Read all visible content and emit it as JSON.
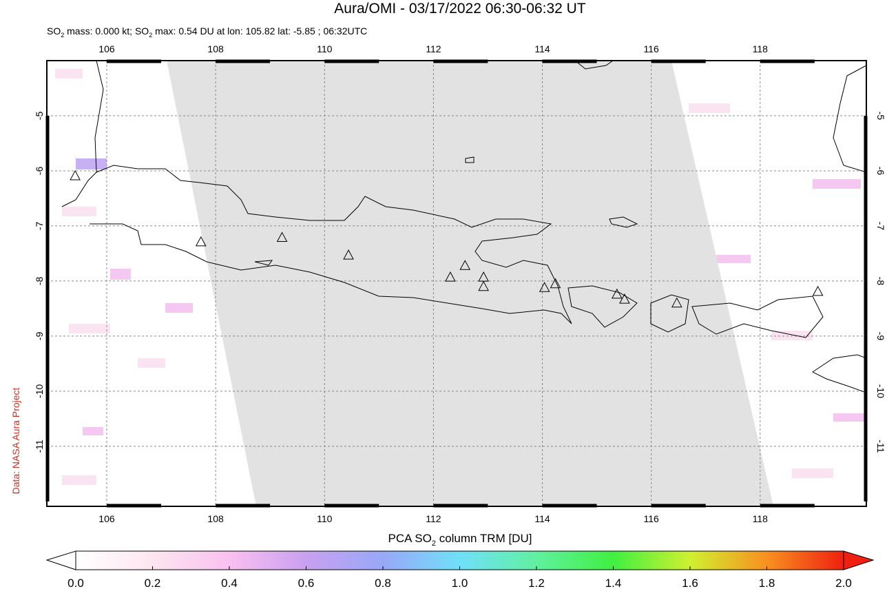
{
  "map": {
    "title": "Aura/OMI - 03/17/2022 06:30-06:32 UT",
    "subtitle": {
      "parts": [
        "SO",
        " mass: 0.000 kt; SO",
        " max: 0.54 DU at lon: 105.82 lat: -5.85 ; 06:32UTC"
      ],
      "subscript": "2"
    },
    "credit": "Data: NASA Aura Project",
    "xlim": [
      104.9,
      119.95
    ],
    "ylim": [
      -12.09,
      -4.0
    ],
    "xticks": [
      106,
      108,
      110,
      112,
      114,
      116,
      118
    ],
    "yticks": [
      -5,
      -6,
      -7,
      -8,
      -9,
      -10,
      -11
    ],
    "grid": true,
    "volcanoes": {
      "lon": [
        105.42,
        107.73,
        109.22,
        110.44,
        112.31,
        112.58,
        112.92,
        112.92,
        114.04,
        114.24,
        115.37,
        115.51,
        116.47,
        119.06
      ],
      "lat": [
        -6.1,
        -7.3,
        -7.22,
        -7.54,
        -7.94,
        -7.73,
        -7.94,
        -8.11,
        -8.13,
        -8.06,
        -8.25,
        -8.34,
        -8.41,
        -8.2
      ]
    },
    "colorbar": {
      "label": {
        "parts": [
          "PCA SO",
          " column TRM [DU]"
        ],
        "subscript": "2"
      },
      "clim": [
        0,
        2
      ],
      "ticks": [
        {
          "value": 0,
          "label": "0.0"
        },
        {
          "value": 0.2,
          "label": "0.2"
        },
        {
          "value": 0.4,
          "label": "0.4"
        },
        {
          "value": 0.6,
          "label": "0.6"
        },
        {
          "value": 0.8,
          "label": "0.8"
        },
        {
          "value": 1,
          "label": "1.0"
        },
        {
          "value": 1.2,
          "label": "1.2"
        },
        {
          "value": 1.4,
          "label": "1.4"
        },
        {
          "value": 1.6,
          "label": "1.6"
        },
        {
          "value": 1.8,
          "label": "1.8"
        },
        {
          "value": 2,
          "label": "2.0"
        }
      ]
    }
  }
}
